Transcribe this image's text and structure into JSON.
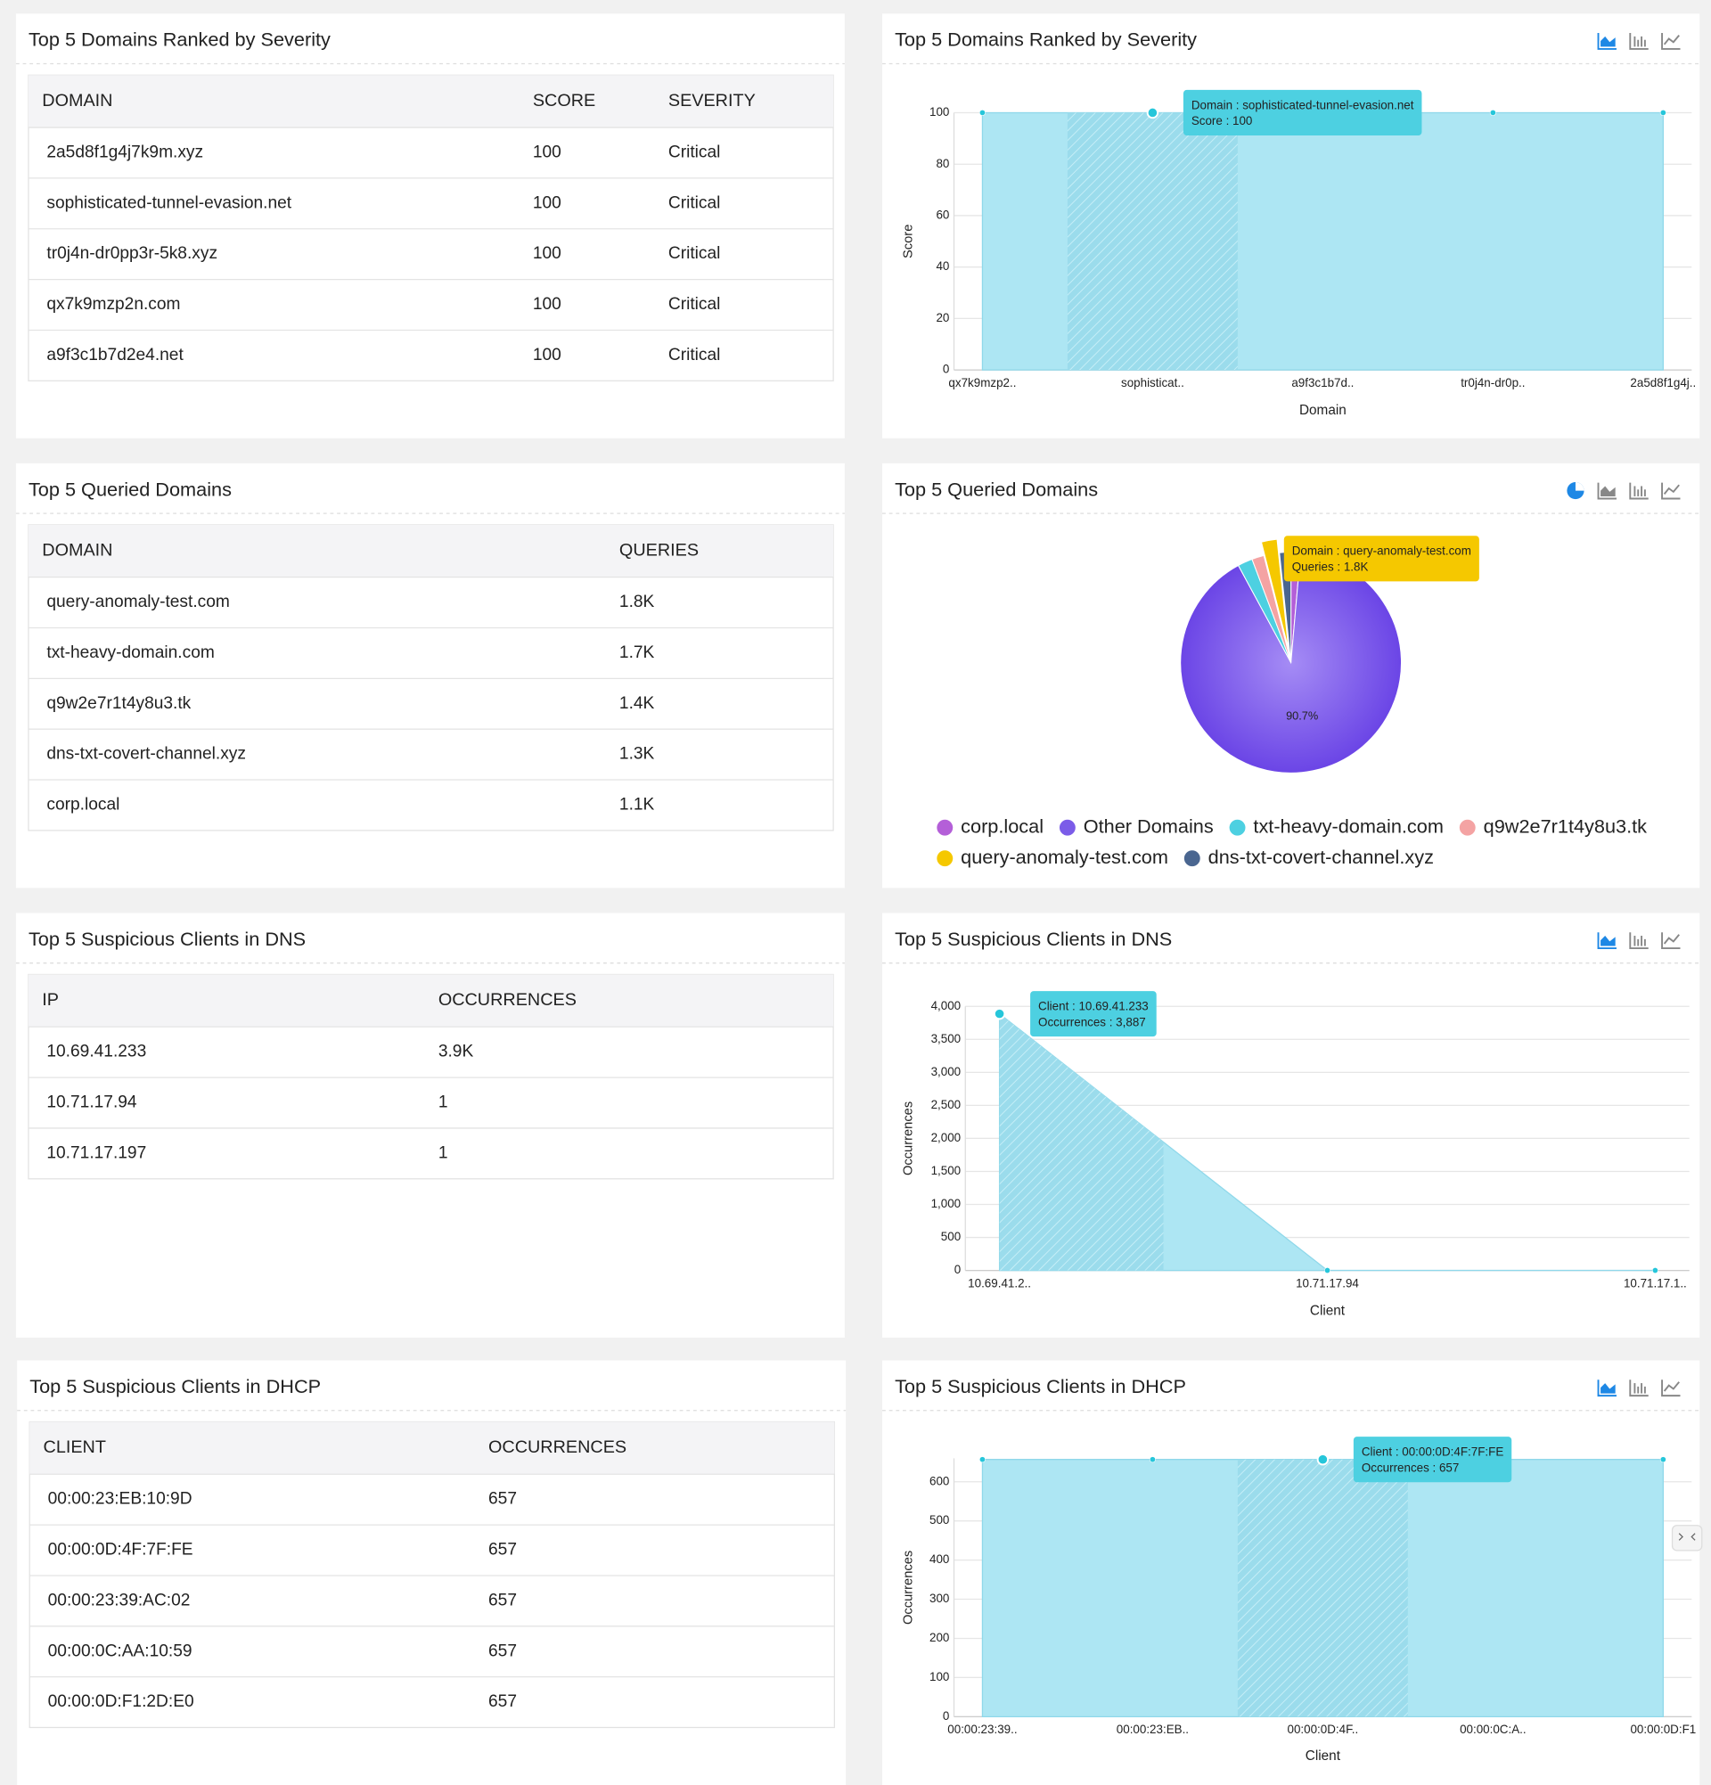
{
  "panels": [
    {
      "title": "Top 5 Domains Ranked by Severity",
      "table": {
        "columns": [
          "DOMAIN",
          "SCORE",
          "SEVERITY"
        ],
        "rows": [
          [
            "2a5d8f1g4j7k9m.xyz",
            100,
            "Critical"
          ],
          [
            "sophisticated-tunnel-evasion.net",
            100,
            "Critical"
          ],
          [
            "tr0j4n-dr0pp3r-5k8.xyz",
            100,
            "Critical"
          ],
          [
            "qx7k9mzp2n.com",
            100,
            "Critical"
          ],
          [
            "a9f3c1b7d2e4.net",
            100,
            "Critical"
          ]
        ]
      }
    },
    {
      "title": "Top 5 Queried Domains",
      "table": {
        "columns": [
          "DOMAIN",
          "QUERIES"
        ],
        "rows": [
          [
            "query-anomaly-test.com",
            "1.8K"
          ],
          [
            "txt-heavy-domain.com",
            "1.7K"
          ],
          [
            "q9w2e7r1t4y8u3.tk",
            "1.4K"
          ],
          [
            "dns-txt-covert-channel.xyz",
            "1.3K"
          ],
          [
            "corp.local",
            "1.1K"
          ]
        ]
      }
    },
    {
      "title": "Top 5 Suspicious Clients in DNS",
      "table": {
        "columns": [
          "IP",
          "OCCURRENCES"
        ],
        "rows": [
          [
            "10.69.41.233",
            "3.9K"
          ],
          [
            "10.71.17.94",
            1
          ],
          [
            "10.71.17.197",
            1
          ]
        ]
      }
    },
    {
      "title": "Top 5 Suspicious Clients in DHCP",
      "table": {
        "columns": [
          "CLIENT",
          "OCCURRENCES"
        ],
        "rows": [
          [
            "00:00:23:EB:10:9D",
            657
          ],
          [
            "00:00:0D:4F:7F:FE",
            657
          ],
          [
            "00:00:23:39:AC:02",
            657
          ],
          [
            "00:00:0C:AA:10:59",
            657
          ],
          [
            "00:00:0D:F1:2D:E0",
            657
          ]
        ]
      }
    }
  ],
  "chart_data": [
    {
      "type": "area",
      "title": "Top 5 Domains Ranked by Severity",
      "x_label": "Domain",
      "y_label": "Score",
      "categories": [
        "qx7k9mzp2..",
        "sophisticat..",
        "a9f3c1b7d..",
        "tr0j4n-dr0p..",
        "2a5d8f1g4j.."
      ],
      "values": [
        100,
        100,
        100,
        100,
        100
      ],
      "color": "#ade6f3",
      "ylim": [
        0,
        100
      ],
      "yticks": [
        0,
        20,
        40,
        60,
        80,
        100
      ],
      "grid": true,
      "tooltip": {
        "index": 1,
        "color": "#4dd0e1",
        "lines": [
          "Domain : sophisticated-tunnel-evasion.net",
          "Score : 100"
        ]
      }
    },
    {
      "type": "pie",
      "title": "Top 5 Queried Domains",
      "categories": [
        "corp.local",
        "Other Domains",
        "txt-heavy-domain.com",
        "q9w2e7r1t4y8u3.tk",
        "query-anomaly-test.com",
        "dns-txt-covert-channel.xyz"
      ],
      "values": [
        1.4,
        90.7,
        2.17,
        1.78,
        2.29,
        1.66
      ],
      "value_labels": [
        null,
        "90.7%",
        null,
        null,
        null,
        null
      ],
      "colors": [
        "#b45fd8",
        "#7b5ce8",
        "#4dd0e1",
        "#f4a3a3",
        "#f5c800",
        "#4a6690"
      ],
      "tooltip": {
        "index": 4,
        "color": "#f5c800",
        "lines": [
          "Domain : query-anomaly-test.com",
          "Queries : 1.8K"
        ]
      }
    },
    {
      "type": "area",
      "title": "Top 5 Suspicious Clients in DNS",
      "x_label": "Client",
      "y_label": "Occurrences",
      "categories": [
        "10.69.41.2..",
        "10.71.17.94",
        "10.71.17.1.."
      ],
      "values": [
        3887,
        1,
        1
      ],
      "color": "#ade6f3",
      "ylim": [
        0,
        4000
      ],
      "yticks": [
        0,
        500,
        {
          "value": 1000,
          "label": "1,000"
        },
        {
          "value": 1500,
          "label": "1,500"
        },
        {
          "value": 2000,
          "label": "2,000"
        },
        {
          "value": 2500,
          "label": "2,500"
        },
        {
          "value": 3000,
          "label": "3,000"
        },
        {
          "value": 3500,
          "label": "3,500"
        },
        {
          "value": 4000,
          "label": "4,000"
        }
      ],
      "grid": true,
      "tooltip": {
        "index": 0,
        "color": "#4dd0e1",
        "lines": [
          "Client : 10.69.41.233",
          "Occurrences : 3,887"
        ]
      }
    },
    {
      "type": "area",
      "title": "Top 5 Suspicious Clients in DHCP",
      "x_label": "Client",
      "y_label": "Occurrences",
      "categories": [
        "00:00:23:39..",
        "00:00:23:EB..",
        "00:00:0D:4F..",
        "00:00:0C:A..",
        "00:00:0D:F1"
      ],
      "values": [
        657,
        657,
        657,
        657,
        657
      ],
      "color": "#ade6f3",
      "ylim": [
        0,
        660
      ],
      "yticks": [
        0,
        100,
        200,
        300,
        400,
        500,
        600
      ],
      "grid": true,
      "tooltip": {
        "index": 2,
        "color": "#4dd0e1",
        "lines": [
          "Client : 00:00:0D:4F:7F:FE",
          "Occurrences : 657"
        ]
      }
    }
  ]
}
